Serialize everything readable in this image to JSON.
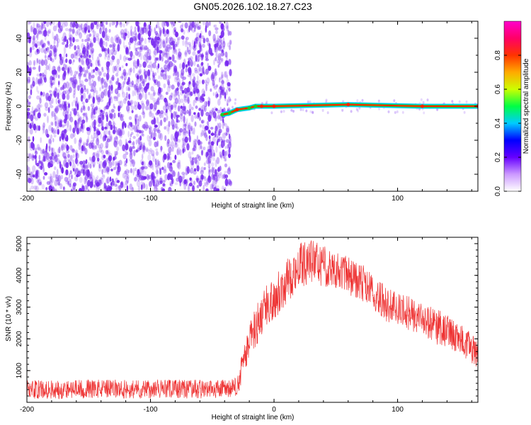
{
  "title": "GN05.2026.102.18.27.C23",
  "colors": {
    "series": "#ee3333",
    "scatter": "#7a2cf0",
    "trace_low": "#00ccff",
    "trace_mid": "#22cc22",
    "trace_high": "#ff2200"
  },
  "chart_data": [
    {
      "type": "heatmap",
      "title": "GN05.2026.102.18.27.C23",
      "xlabel": "Height of straight line (km)",
      "ylabel": "Frequency (Hz)",
      "xlim": [
        -200,
        165
      ],
      "ylim": [
        -50,
        50
      ],
      "xticks": [
        -200,
        -100,
        0,
        100
      ],
      "yticks": [
        -40,
        -20,
        0,
        20,
        40
      ],
      "colorbar": {
        "label": "Normalized spectral amplitude",
        "range": [
          0,
          1
        ],
        "ticks": [
          "0.0",
          "0.2",
          "0.4",
          "0.6",
          "0.8"
        ],
        "colormap": [
          "#ffffff",
          "#cc99ff",
          "#6600ff",
          "#0000ff",
          "#00ccff",
          "#00ff44",
          "#ccff00",
          "#ffaa00",
          "#ff3300",
          "#ff0066",
          "#ff00cc"
        ]
      },
      "noise_region": {
        "x_range": [
          -200,
          -35
        ],
        "freq_range": [
          -50,
          50
        ],
        "amplitude_range": [
          0.0,
          0.2
        ]
      },
      "trace": {
        "freq_hz": 0,
        "points": [
          {
            "x": -42,
            "y": -5,
            "a": 0.35
          },
          {
            "x": -36,
            "y": -4,
            "a": 0.4
          },
          {
            "x": -30,
            "y": -2,
            "a": 0.75
          },
          {
            "x": -20,
            "y": -1,
            "a": 0.6
          },
          {
            "x": -15,
            "y": 0,
            "a": 0.5
          },
          {
            "x": -10,
            "y": 0,
            "a": 0.7
          },
          {
            "x": 0,
            "y": 0,
            "a": 0.8
          },
          {
            "x": 60,
            "y": 1,
            "a": 0.85
          },
          {
            "x": 120,
            "y": 0,
            "a": 0.8
          },
          {
            "x": 165,
            "y": 0,
            "a": 0.8
          }
        ]
      }
    },
    {
      "type": "line",
      "xlabel": "Height of straight line (km)",
      "ylabel": "SNR (10 * v/v)",
      "xlim": [
        -200,
        165
      ],
      "ylim": [
        0,
        5200
      ],
      "xticks": [
        -200,
        -100,
        0,
        100
      ],
      "yticks": [
        1000,
        2000,
        3000,
        4000,
        5000
      ],
      "series": [
        {
          "envelope": {
            "x": [
              -200,
              -150,
              -100,
              -50,
              -35,
              -30,
              -25,
              -20,
              -10,
              0,
              10,
              20,
              30,
              40,
              50,
              60,
              70,
              80,
              90,
              100,
              110,
              120,
              130,
              140,
              150,
              160,
              165
            ],
            "mean": [
              400,
              420,
              420,
              420,
              420,
              500,
              1200,
              1900,
              2800,
              3300,
              3800,
              4300,
              4450,
              4300,
              4200,
              4000,
              3800,
              3500,
              3100,
              2900,
              2800,
              2600,
              2400,
              2250,
              2000,
              1700,
              1500
            ],
            "spread": [
              300,
              300,
              300,
              300,
              300,
              300,
              500,
              600,
              700,
              700,
              700,
              700,
              700,
              650,
              600,
              600,
              600,
              550,
              550,
              550,
              550,
              550,
              550,
              550,
              500,
              500,
              500
            ]
          }
        }
      ]
    }
  ]
}
